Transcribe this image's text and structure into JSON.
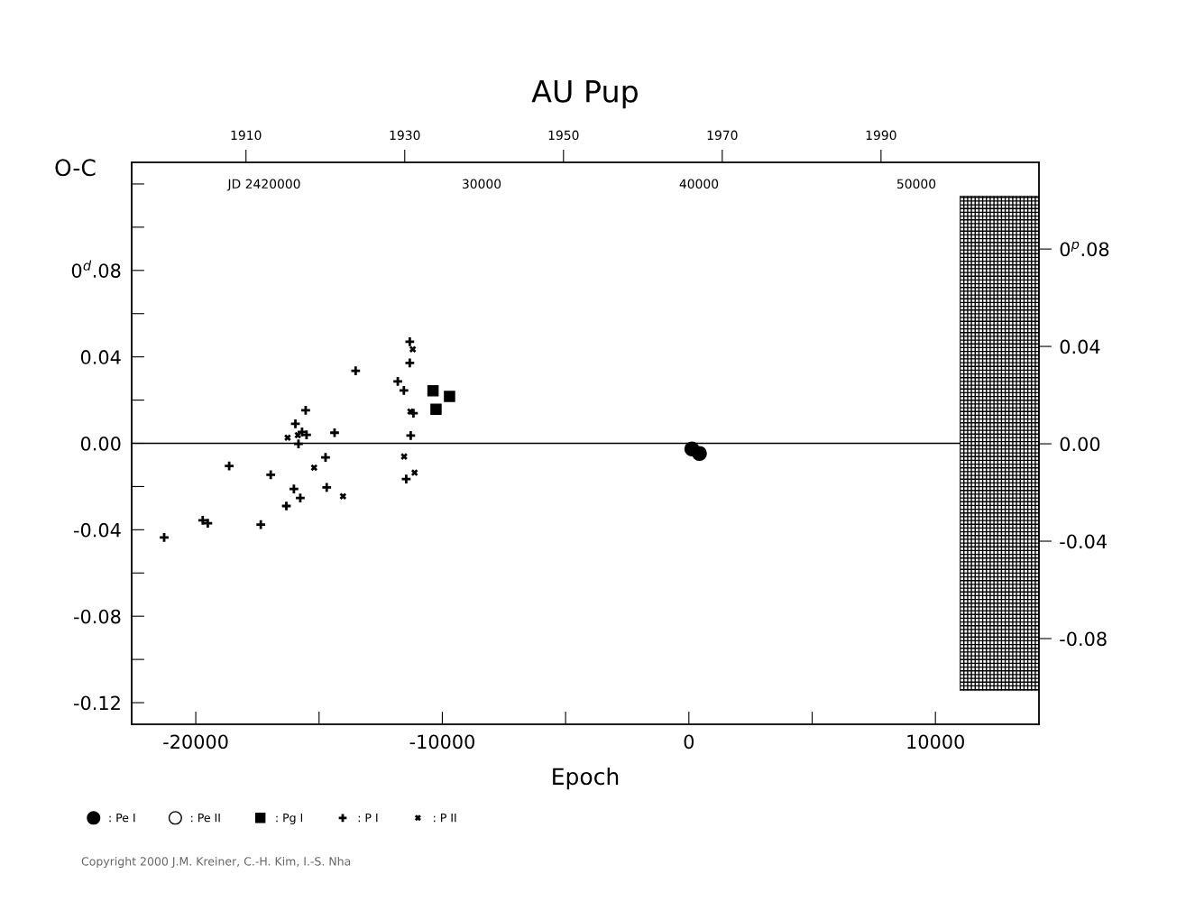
{
  "chart_data": {
    "type": "scatter",
    "title": "AU Pup",
    "xlabel": "Epoch",
    "ylabel": "O-C",
    "xlim": [
      -22600,
      14200
    ],
    "xticks": [
      -20000,
      {
        "value": -15000,
        "label": null
      },
      -10000,
      {
        "value": -5000,
        "label": null
      },
      0,
      {
        "value": 5000,
        "label": null
      },
      10000
    ],
    "ylim": [
      -0.13,
      0.13
    ],
    "yticks": [
      {
        "value": -0.12,
        "label": "-0.12"
      },
      {
        "value": -0.1,
        "label": null
      },
      {
        "value": -0.08,
        "label": "-0.08"
      },
      {
        "value": -0.06,
        "label": null
      },
      {
        "value": -0.04,
        "label": "-0.04"
      },
      {
        "value": -0.02,
        "label": null
      },
      {
        "value": 0,
        "label": "0.00"
      },
      {
        "value": 0.02,
        "label": null
      },
      {
        "value": 0.04,
        "label": "0.04"
      },
      {
        "value": 0.06,
        "label": null
      },
      {
        "value": 0.08,
        "label": "0$^{d}$.08"
      },
      {
        "value": 0.1,
        "label": null
      },
      {
        "value": 0.12,
        "label": null
      }
    ],
    "y2lim": [
      -0.1152,
      0.1156
    ],
    "y2ticks": [
      {
        "value": -0.08,
        "label": "-0.08"
      },
      {
        "value": -0.04,
        "label": "-0.04"
      },
      {
        "value": 0,
        "label": "0.00"
      },
      {
        "value": 0.04,
        "label": "0.04"
      },
      {
        "value": 0.08,
        "label": "0$^{p}$.08"
      }
    ],
    "x2lim": [
      1895.6,
      2009.9
    ],
    "x2ticks": [
      1910,
      1930,
      1950,
      1970,
      1990
    ],
    "ref_lines": [
      {
        "axis": "y",
        "value": 0,
        "label": null,
        "color": "#000000"
      }
    ],
    "grid": false,
    "legend": "bottom",
    "annotations": [
      "JD 2420000",
      "30000",
      "40000",
      "50000",
      "Copyright 2000 J.M. Kreiner, C.-H. Kim, I.-S. Nha"
    ],
    "series": [
      {
        "name": ": Pe I",
        "color": "#000000",
        "marker": "circle",
        "x": [
          121,
          428
        ],
        "values": [
          -0.0026,
          -0.0047
        ]
      },
      {
        "name": ": Pe II",
        "color": "#000000",
        "marker": "circle"
      },
      {
        "name": ": Pg I",
        "color": "#000000",
        "marker": "square",
        "x": [
          -10378,
          -9707,
          -10256
        ],
        "values": [
          0.0243,
          0.0217,
          0.0158
        ]
      },
      {
        "name": ": P I",
        "color": "#000000",
        "marker": "cross",
        "x": [
          -11320,
          -11320,
          -13516,
          -11806,
          -11560,
          -11172,
          -11282,
          -15543,
          -15960,
          -15690,
          -15507,
          -14371,
          -15835,
          -14737,
          -18645,
          -16960,
          -16020,
          -14689,
          -15762,
          -16326,
          -11465,
          -19718,
          -19513,
          -17363,
          -21282
        ],
        "values": [
          0.047,
          0.0372,
          0.0335,
          0.0286,
          0.0245,
          0.0139,
          0.0036,
          0.0153,
          0.009,
          0.0053,
          0.0039,
          0.0049,
          -0.0003,
          -0.0065,
          -0.0105,
          -0.0146,
          -0.0211,
          -0.0204,
          -0.0253,
          -0.029,
          -0.0165,
          -0.0356,
          -0.037,
          -0.0376,
          -0.0436
        ]
      },
      {
        "name": ": P II",
        "color": "#000000",
        "marker": "x",
        "x": [
          -11198,
          -11294,
          -16275,
          -15861,
          -11550,
          -15201,
          -11125,
          -14029
        ],
        "values": [
          0.0435,
          0.0147,
          0.0026,
          0.0038,
          -0.0061,
          -0.0113,
          -0.0136,
          -0.0245
        ]
      }
    ]
  }
}
